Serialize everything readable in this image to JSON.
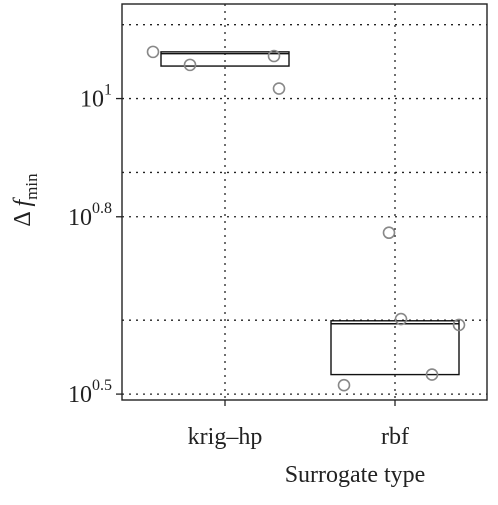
{
  "chart_data": {
    "type": "box",
    "xlabel": "Surrogate type",
    "ylabel": "Δ",
    "ylabel_var": "f",
    "ylabel_sub": "min",
    "categories": [
      "krig–hp",
      "rbf"
    ],
    "boxes": [
      {
        "q1": 1.055,
        "median": 1.076,
        "q3": 1.079,
        "points": [
          1.079,
          1.057,
          1.072,
          1.017
        ]
      },
      {
        "q1": 0.533,
        "median": 0.619,
        "q3": 0.624,
        "points": [
          0.515,
          0.627,
          0.533,
          0.773,
          0.617
        ]
      }
    ],
    "ylim": [
      0.49,
      1.16
    ],
    "yticks": [
      {
        "value": 1,
        "base": "10",
        "exponent": "1"
      },
      {
        "value": 0.8,
        "base": "10",
        "exponent": "0.8"
      },
      {
        "value": 0.5,
        "base": "10",
        "exponent": "0.5"
      }
    ],
    "minor_grid": [
      1.125,
      0.875,
      0.625
    ],
    "grid": true
  }
}
